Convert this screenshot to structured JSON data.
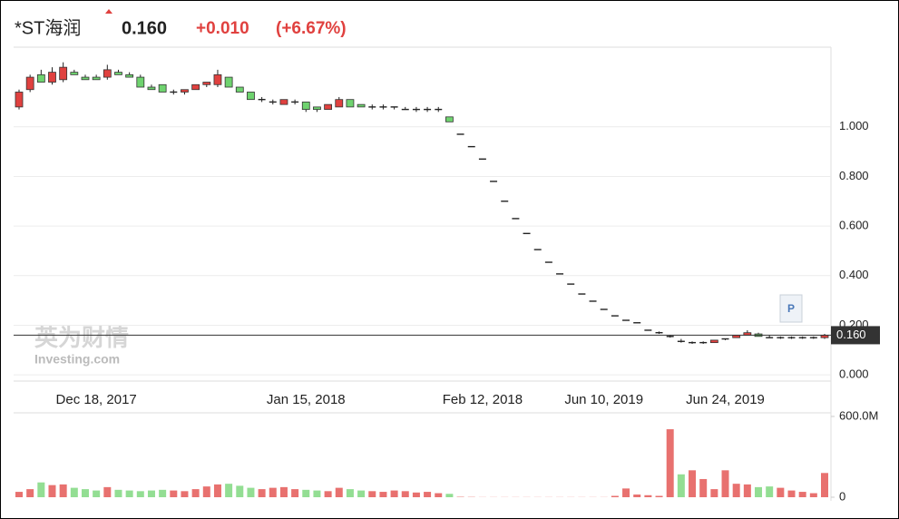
{
  "chart_data": {
    "type": "candlestick",
    "title": "*ST海润",
    "price": "0.160",
    "change": "+0.010",
    "change_pct": "(+6.67%)",
    "marker": "P",
    "watermark": [
      "英为财情",
      "Investing.com"
    ],
    "last_value": 0.16,
    "up_color": "#e0413f",
    "down_color": "#6fd36f",
    "categories": [
      null,
      null,
      null,
      null,
      null,
      null,
      null,
      "Dec 18, 2017",
      null,
      null,
      null,
      null,
      null,
      null,
      null,
      null,
      null,
      null,
      null,
      null,
      null,
      null,
      null,
      null,
      null,
      null,
      "Jan 15, 2018",
      null,
      null,
      null,
      null,
      null,
      null,
      null,
      null,
      null,
      null,
      null,
      null,
      null,
      null,
      null,
      "Feb 12, 2018",
      null,
      null,
      null,
      null,
      null,
      null,
      null,
      null,
      null,
      null,
      "Jun 10, 2019",
      null,
      null,
      null,
      null,
      null,
      null,
      null,
      null,
      null,
      null,
      "Jun 24, 2019",
      null,
      null,
      null,
      null,
      null,
      null,
      null,
      null,
      null
    ],
    "open": [
      1.08,
      1.15,
      1.21,
      1.18,
      1.19,
      1.22,
      1.2,
      1.2,
      1.2,
      1.22,
      1.21,
      1.2,
      1.16,
      1.17,
      1.14,
      1.14,
      1.15,
      1.17,
      1.17,
      1.2,
      1.16,
      1.14,
      1.11,
      1.1,
      1.09,
      1.1,
      1.1,
      1.08,
      1.07,
      1.08,
      1.11,
      1.09,
      1.08,
      1.08,
      1.08,
      1.07,
      1.07,
      1.07,
      1.07,
      1.04,
      0.97,
      0.92,
      0.87,
      0.78,
      0.7,
      0.63,
      0.57,
      0.505,
      0.454,
      0.407,
      0.366,
      0.326,
      0.297,
      0.264,
      0.238,
      0.22,
      0.21,
      0.18,
      0.17,
      0.155,
      0.14,
      0.13,
      0.13,
      0.13,
      0.14,
      0.15,
      0.16,
      0.165,
      0.155,
      0.15,
      0.15,
      0.15,
      0.15,
      0.15
    ],
    "high": [
      1.15,
      1.21,
      1.23,
      1.24,
      1.26,
      1.23,
      1.21,
      1.21,
      1.25,
      1.23,
      1.22,
      1.21,
      1.17,
      1.17,
      1.15,
      1.15,
      1.17,
      1.18,
      1.23,
      1.2,
      1.16,
      1.14,
      1.12,
      1.11,
      1.11,
      1.11,
      1.1,
      1.08,
      1.09,
      1.12,
      1.11,
      1.09,
      1.09,
      1.09,
      1.08,
      1.08,
      1.08,
      1.08,
      1.08,
      1.04,
      0.97,
      0.92,
      0.87,
      0.78,
      0.7,
      0.63,
      0.57,
      0.505,
      0.454,
      0.407,
      0.366,
      0.326,
      0.297,
      0.264,
      0.238,
      0.22,
      0.21,
      0.18,
      0.175,
      0.16,
      0.145,
      0.135,
      0.135,
      0.14,
      0.145,
      0.16,
      0.18,
      0.17,
      0.16,
      0.155,
      0.155,
      0.155,
      0.155,
      0.165
    ],
    "low": [
      1.07,
      1.14,
      1.18,
      1.17,
      1.18,
      1.21,
      1.19,
      1.19,
      1.19,
      1.21,
      1.2,
      1.16,
      1.15,
      1.14,
      1.13,
      1.13,
      1.15,
      1.16,
      1.16,
      1.16,
      1.14,
      1.11,
      1.1,
      1.09,
      1.09,
      1.09,
      1.06,
      1.06,
      1.07,
      1.08,
      1.08,
      1.08,
      1.07,
      1.07,
      1.07,
      1.07,
      1.06,
      1.06,
      1.06,
      1.02,
      0.97,
      0.92,
      0.87,
      0.78,
      0.7,
      0.63,
      0.57,
      0.505,
      0.454,
      0.407,
      0.366,
      0.326,
      0.297,
      0.264,
      0.238,
      0.22,
      0.21,
      0.18,
      0.165,
      0.15,
      0.13,
      0.125,
      0.125,
      0.13,
      0.14,
      0.15,
      0.16,
      0.155,
      0.15,
      0.145,
      0.145,
      0.145,
      0.145,
      0.145
    ],
    "close": [
      1.14,
      1.2,
      1.18,
      1.22,
      1.24,
      1.21,
      1.19,
      1.19,
      1.23,
      1.21,
      1.2,
      1.16,
      1.15,
      1.14,
      1.14,
      1.15,
      1.17,
      1.18,
      1.21,
      1.16,
      1.14,
      1.11,
      1.11,
      1.1,
      1.11,
      1.1,
      1.07,
      1.07,
      1.09,
      1.11,
      1.08,
      1.08,
      1.08,
      1.08,
      1.08,
      1.07,
      1.07,
      1.07,
      1.07,
      1.02,
      0.97,
      0.92,
      0.87,
      0.78,
      0.7,
      0.63,
      0.57,
      0.505,
      0.454,
      0.407,
      0.366,
      0.326,
      0.297,
      0.264,
      0.238,
      0.22,
      0.21,
      0.18,
      0.17,
      0.155,
      0.135,
      0.13,
      0.13,
      0.14,
      0.145,
      0.16,
      0.17,
      0.155,
      0.15,
      0.15,
      0.15,
      0.15,
      0.15,
      0.16
    ],
    "volume": [
      40,
      60,
      110,
      90,
      95,
      70,
      60,
      50,
      75,
      55,
      50,
      45,
      50,
      55,
      50,
      45,
      60,
      80,
      95,
      100,
      85,
      70,
      60,
      70,
      75,
      60,
      55,
      50,
      45,
      70,
      60,
      50,
      45,
      40,
      50,
      45,
      35,
      40,
      30,
      25,
      3,
      2,
      1,
      1,
      1,
      1,
      1,
      1,
      1,
      1,
      1,
      1,
      1,
      1,
      10,
      65,
      20,
      15,
      10,
      505,
      170,
      200,
      135,
      60,
      200,
      100,
      95,
      75,
      80,
      70,
      50,
      40,
      30,
      180
    ],
    "ylim": [
      -0.025,
      1.31
    ],
    "yticks": [
      {
        "value": 0,
        "label": "0.000"
      },
      {
        "value": 0.2,
        "label": "0.200"
      },
      {
        "value": 0.4,
        "label": "0.400"
      },
      {
        "value": 0.6,
        "label": "0.600"
      },
      {
        "value": 0.8,
        "label": "0.800"
      },
      {
        "value": 1,
        "label": "1.000"
      }
    ],
    "vlim": [
      0,
      647
    ],
    "vticks": [
      0,
      {
        "value": 600,
        "label": "600.0M"
      }
    ],
    "grid": true
  }
}
